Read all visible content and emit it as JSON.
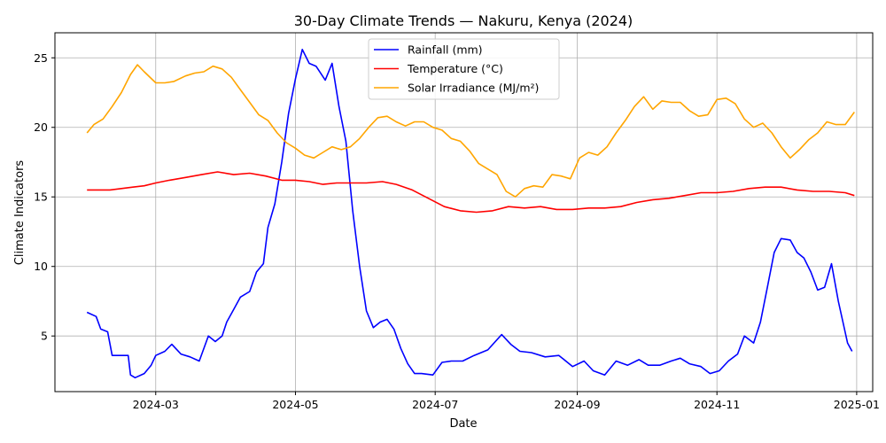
{
  "chart_data": {
    "type": "line",
    "title": "30-Day Climate Trends — Nakuru, Kenya (2024)",
    "xlabel": "Date",
    "ylabel": "Climate Indicators",
    "x_range": [
      "2024-01-17",
      "2025-01-08"
    ],
    "ylim": [
      1.0,
      26.8
    ],
    "x_ticks": [
      "2024-03-01",
      "2024-05-01",
      "2024-07-01",
      "2024-09-01",
      "2024-11-01",
      "2025-01-01"
    ],
    "x_tick_labels": [
      "2024-03",
      "2024-05",
      "2024-07",
      "2024-09",
      "2024-11",
      "2025-01"
    ],
    "y_ticks": [
      5,
      10,
      15,
      20,
      25
    ],
    "y_tick_labels": [
      "5",
      "10",
      "15",
      "20",
      "25"
    ],
    "grid": true,
    "legend_position": "top-center",
    "series": [
      {
        "name": "Rainfall (mm)",
        "color": "#0000ff",
        "x": [
          "2024-01-31",
          "2024-02-04",
          "2024-02-06",
          "2024-02-09",
          "2024-02-11",
          "2024-02-12",
          "2024-02-18",
          "2024-02-19",
          "2024-02-21",
          "2024-02-25",
          "2024-02-28",
          "2024-03-01",
          "2024-03-05",
          "2024-03-08",
          "2024-03-12",
          "2024-03-16",
          "2024-03-20",
          "2024-03-24",
          "2024-03-27",
          "2024-03-30",
          "2024-04-01",
          "2024-04-04",
          "2024-04-07",
          "2024-04-11",
          "2024-04-14",
          "2024-04-17",
          "2024-04-19",
          "2024-04-22",
          "2024-04-25",
          "2024-04-28",
          "2024-05-01",
          "2024-05-04",
          "2024-05-07",
          "2024-05-10",
          "2024-05-14",
          "2024-05-17",
          "2024-05-20",
          "2024-05-23",
          "2024-05-26",
          "2024-05-29",
          "2024-06-01",
          "2024-06-04",
          "2024-06-07",
          "2024-06-10",
          "2024-06-13",
          "2024-06-16",
          "2024-06-19",
          "2024-06-22",
          "2024-06-25",
          "2024-06-30",
          "2024-07-04",
          "2024-07-08",
          "2024-07-13",
          "2024-07-18",
          "2024-07-24",
          "2024-07-30",
          "2024-08-03",
          "2024-08-07",
          "2024-08-12",
          "2024-08-18",
          "2024-08-24",
          "2024-08-30",
          "2024-09-04",
          "2024-09-08",
          "2024-09-13",
          "2024-09-18",
          "2024-09-23",
          "2024-09-28",
          "2024-10-02",
          "2024-10-07",
          "2024-10-12",
          "2024-10-16",
          "2024-10-20",
          "2024-10-25",
          "2024-10-29",
          "2024-11-02",
          "2024-11-06",
          "2024-11-10",
          "2024-11-13",
          "2024-11-17",
          "2024-11-20",
          "2024-11-23",
          "2024-11-26",
          "2024-11-29",
          "2024-12-03",
          "2024-12-06",
          "2024-12-09",
          "2024-12-12",
          "2024-12-15",
          "2024-12-18",
          "2024-12-21",
          "2024-12-24",
          "2024-12-26",
          "2024-12-28",
          "2024-12-30"
        ],
        "values": [
          6.7,
          6.4,
          5.5,
          5.3,
          3.6,
          3.6,
          3.6,
          2.2,
          2.0,
          2.3,
          2.9,
          3.6,
          3.9,
          4.4,
          3.7,
          3.5,
          3.2,
          5.0,
          4.6,
          5.0,
          6.0,
          6.9,
          7.8,
          8.2,
          9.6,
          10.2,
          12.8,
          14.5,
          17.5,
          21.0,
          23.5,
          25.6,
          24.6,
          24.4,
          23.4,
          24.6,
          21.5,
          19.0,
          14.0,
          10.0,
          6.8,
          5.6,
          6.0,
          6.2,
          5.5,
          4.1,
          3.0,
          2.3,
          2.3,
          2.2,
          3.1,
          3.2,
          3.2,
          3.6,
          4.0,
          5.1,
          4.4,
          3.9,
          3.8,
          3.5,
          3.6,
          2.8,
          3.2,
          2.5,
          2.2,
          3.2,
          2.9,
          3.3,
          2.9,
          2.9,
          3.2,
          3.4,
          3.0,
          2.8,
          2.3,
          2.5,
          3.2,
          3.7,
          5.0,
          4.5,
          6.0,
          8.5,
          11.0,
          12.0,
          11.9,
          11.0,
          10.6,
          9.6,
          8.3,
          8.5,
          10.2,
          7.5,
          6.0,
          4.5,
          3.9
        ]
      },
      {
        "name": "Temperature (°C)",
        "color": "#ff0000",
        "x": [
          "2024-01-31",
          "2024-02-05",
          "2024-02-10",
          "2024-02-15",
          "2024-02-20",
          "2024-02-25",
          "2024-03-01",
          "2024-03-07",
          "2024-03-14",
          "2024-03-21",
          "2024-03-28",
          "2024-04-04",
          "2024-04-11",
          "2024-04-18",
          "2024-04-25",
          "2024-05-01",
          "2024-05-07",
          "2024-05-13",
          "2024-05-19",
          "2024-05-25",
          "2024-06-01",
          "2024-06-08",
          "2024-06-14",
          "2024-06-21",
          "2024-06-28",
          "2024-07-05",
          "2024-07-12",
          "2024-07-19",
          "2024-07-26",
          "2024-08-02",
          "2024-08-09",
          "2024-08-16",
          "2024-08-23",
          "2024-08-30",
          "2024-09-06",
          "2024-09-13",
          "2024-09-20",
          "2024-09-27",
          "2024-10-04",
          "2024-10-11",
          "2024-10-18",
          "2024-10-25",
          "2024-11-01",
          "2024-11-08",
          "2024-11-15",
          "2024-11-22",
          "2024-11-29",
          "2024-12-06",
          "2024-12-13",
          "2024-12-20",
          "2024-12-27",
          "2024-12-31"
        ],
        "values": [
          15.5,
          15.5,
          15.5,
          15.6,
          15.7,
          15.8,
          16.0,
          16.2,
          16.4,
          16.6,
          16.8,
          16.6,
          16.7,
          16.5,
          16.2,
          16.2,
          16.1,
          15.9,
          16.0,
          16.0,
          16.0,
          16.1,
          15.9,
          15.5,
          14.9,
          14.3,
          14.0,
          13.9,
          14.0,
          14.3,
          14.2,
          14.3,
          14.1,
          14.1,
          14.2,
          14.2,
          14.3,
          14.6,
          14.8,
          14.9,
          15.1,
          15.3,
          15.3,
          15.4,
          15.6,
          15.7,
          15.7,
          15.5,
          15.4,
          15.4,
          15.3,
          15.1
        ]
      },
      {
        "name": "Solar Irradiance (MJ/m²)",
        "color": "#ffa500",
        "x": [
          "2024-01-31",
          "2024-02-03",
          "2024-02-07",
          "2024-02-11",
          "2024-02-15",
          "2024-02-19",
          "2024-02-22",
          "2024-02-25",
          "2024-03-01",
          "2024-03-05",
          "2024-03-09",
          "2024-03-14",
          "2024-03-18",
          "2024-03-22",
          "2024-03-26",
          "2024-03-30",
          "2024-04-03",
          "2024-04-07",
          "2024-04-11",
          "2024-04-15",
          "2024-04-19",
          "2024-04-23",
          "2024-04-27",
          "2024-05-01",
          "2024-05-05",
          "2024-05-09",
          "2024-05-13",
          "2024-05-17",
          "2024-05-21",
          "2024-05-25",
          "2024-05-29",
          "2024-06-02",
          "2024-06-06",
          "2024-06-10",
          "2024-06-14",
          "2024-06-18",
          "2024-06-22",
          "2024-06-26",
          "2024-06-30",
          "2024-07-04",
          "2024-07-08",
          "2024-07-12",
          "2024-07-16",
          "2024-07-20",
          "2024-07-24",
          "2024-07-28",
          "2024-08-01",
          "2024-08-05",
          "2024-08-09",
          "2024-08-13",
          "2024-08-17",
          "2024-08-21",
          "2024-08-25",
          "2024-08-29",
          "2024-09-02",
          "2024-09-06",
          "2024-09-10",
          "2024-09-14",
          "2024-09-18",
          "2024-09-22",
          "2024-09-26",
          "2024-09-30",
          "2024-10-04",
          "2024-10-08",
          "2024-10-12",
          "2024-10-16",
          "2024-10-20",
          "2024-10-24",
          "2024-10-28",
          "2024-11-01",
          "2024-11-05",
          "2024-11-09",
          "2024-11-13",
          "2024-11-17",
          "2024-11-21",
          "2024-11-25",
          "2024-11-29",
          "2024-12-03",
          "2024-12-07",
          "2024-12-11",
          "2024-12-15",
          "2024-12-19",
          "2024-12-23",
          "2024-12-27",
          "2024-12-31"
        ],
        "values": [
          19.6,
          20.2,
          20.6,
          21.5,
          22.5,
          23.8,
          24.5,
          24.0,
          23.2,
          23.2,
          23.3,
          23.7,
          23.9,
          24.0,
          24.4,
          24.2,
          23.6,
          22.7,
          21.8,
          20.9,
          20.5,
          19.6,
          18.9,
          18.5,
          18.0,
          17.8,
          18.2,
          18.6,
          18.4,
          18.6,
          19.2,
          20.0,
          20.7,
          20.8,
          20.4,
          20.1,
          20.4,
          20.4,
          20.0,
          19.8,
          19.2,
          19.0,
          18.3,
          17.4,
          17.0,
          16.6,
          15.4,
          15.0,
          15.6,
          15.8,
          15.7,
          16.6,
          16.5,
          16.3,
          17.8,
          18.2,
          18.0,
          18.6,
          19.6,
          20.5,
          21.5,
          22.2,
          21.3,
          21.9,
          21.8,
          21.8,
          21.2,
          20.8,
          20.9,
          22.0,
          22.1,
          21.7,
          20.6,
          20.0,
          20.3,
          19.6,
          18.6,
          17.8,
          18.4,
          19.1,
          19.6,
          20.4,
          20.2,
          20.2,
          21.1
        ]
      }
    ]
  }
}
